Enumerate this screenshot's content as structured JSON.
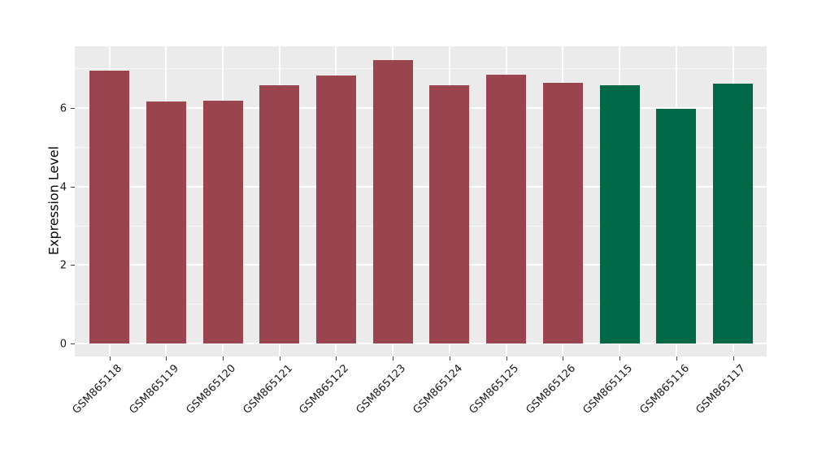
{
  "chart_data": {
    "type": "bar",
    "title": "",
    "xlabel": "",
    "ylabel": "Expression Level",
    "categories": [
      "GSM865118",
      "GSM865119",
      "GSM865120",
      "GSM865121",
      "GSM865122",
      "GSM865123",
      "GSM865124",
      "GSM865125",
      "GSM865126",
      "GSM865115",
      "GSM865116",
      "GSM865117"
    ],
    "values": [
      6.95,
      6.16,
      6.18,
      6.58,
      6.82,
      7.22,
      6.59,
      6.84,
      6.65,
      6.59,
      5.98,
      6.62
    ],
    "bar_colors": [
      "#9A4450",
      "#9A4450",
      "#9A4450",
      "#9A4450",
      "#9A4450",
      "#9A4450",
      "#9A4450",
      "#9A4450",
      "#9A4450",
      "#006747",
      "#006747",
      "#006747"
    ],
    "group_colors": {
      "first_group": "#9A4450",
      "second_group": "#006747"
    },
    "ylim": [
      -0.33,
      7.57
    ],
    "yticks": [
      0,
      2,
      4,
      6
    ],
    "ytick_labels": [
      "0",
      "2",
      "4",
      "6"
    ],
    "yticks_minor": [
      1,
      3,
      5,
      7
    ],
    "legend": "none",
    "grid": {
      "horizontal_major": true,
      "horizontal_minor": true,
      "vertical_major_at_categories": true
    },
    "panel_background": "#EBEBEB",
    "gridline_color": "#FFFFFF",
    "tick_color": "#444444",
    "x_tick_label_rotation_deg": 45
  }
}
